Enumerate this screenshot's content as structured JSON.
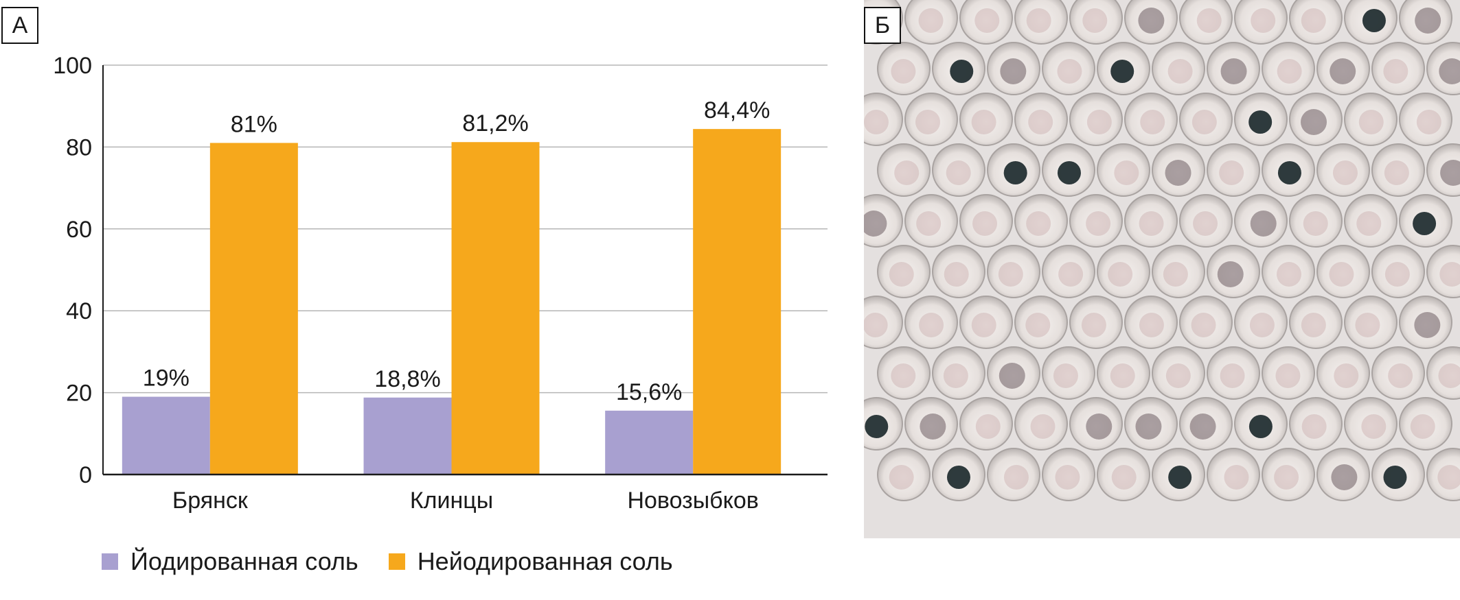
{
  "panels": {
    "a_label": "А",
    "b_label": "Б"
  },
  "colors": {
    "iodized": "#A8A0D0",
    "non_iodized": "#F6A81C",
    "grid": "#B5B5B5",
    "axis": "#1a1a1a"
  },
  "chart_data": {
    "type": "bar",
    "categories": [
      "Брянск",
      "Клинцы",
      "Новозыбков"
    ],
    "series": [
      {
        "name": "Йодированная соль",
        "values": [
          19,
          18.8,
          15.6
        ],
        "labels": [
          "19%",
          "18,8%",
          "15,6%"
        ]
      },
      {
        "name": "Нейодированная соль",
        "values": [
          81,
          81.2,
          84.4
        ],
        "labels": [
          "81%",
          "81,2%",
          "84,4%"
        ]
      }
    ],
    "ylim": [
      0,
      100
    ],
    "yticks": [
      0,
      20,
      40,
      60,
      80,
      100
    ],
    "grid": true,
    "legend_position": "bottom"
  },
  "photo": {
    "icon": "sample-plate-image"
  }
}
